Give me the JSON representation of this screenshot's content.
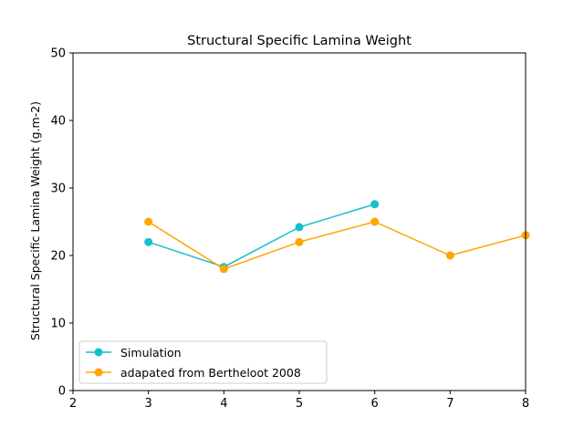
{
  "chart_data": {
    "type": "line",
    "title": "Structural Specific Lamina Weight",
    "xlabel": "",
    "ylabel": "Structural Specific Lamina Weight (g.m-2)",
    "xlim": [
      2,
      8
    ],
    "ylim": [
      0,
      50
    ],
    "x_ticks": [
      "2",
      "3",
      "4",
      "5",
      "6",
      "7",
      "8"
    ],
    "y_ticks": [
      "0",
      "10",
      "20",
      "30",
      "40",
      "50"
    ],
    "grid": false,
    "legend_position": "lower-left",
    "series": [
      {
        "name": "Simulation",
        "color": "#17becf",
        "x": [
          3,
          4,
          5,
          6
        ],
        "y": [
          22.0,
          18.3,
          24.2,
          27.6
        ]
      },
      {
        "name": "adapated from Bertheloot 2008",
        "color": "#ffa500",
        "x": [
          3,
          4,
          5,
          6,
          7,
          8
        ],
        "y": [
          25.0,
          18.0,
          22.0,
          25.0,
          20.0,
          23.0
        ]
      }
    ]
  }
}
